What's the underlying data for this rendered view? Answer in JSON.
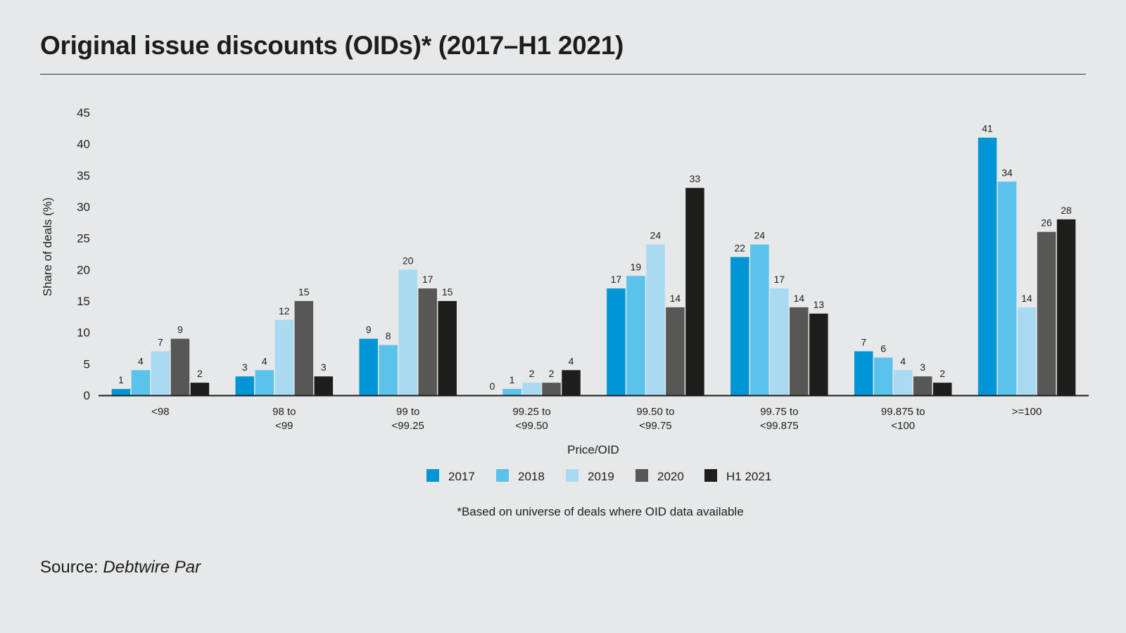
{
  "title": "Original issue discounts (OIDs)* (2017–H1 2021)",
  "footnote": "*Based on universe of deals where OID data available",
  "source": {
    "label": "Source:",
    "name": "Debtwire Par"
  },
  "colors": {
    "2017": "#0096d6",
    "2018": "#5bc2e9",
    "2019": "#a9daf2",
    "2020": "#575756",
    "H1 2021": "#1d1d1b"
  },
  "chart_data": {
    "type": "bar",
    "title": "Original issue discounts (OIDs)* (2017–H1 2021)",
    "xlabel": "Price/OID",
    "ylabel": "Share of deals (%)",
    "ylim": [
      0,
      45
    ],
    "yticks": [
      0,
      5,
      10,
      15,
      20,
      25,
      30,
      35,
      40,
      45
    ],
    "legend_position": "bottom",
    "categories": [
      [
        "<98"
      ],
      [
        "98 to",
        "<99"
      ],
      [
        "99 to",
        "<99.25"
      ],
      [
        "99.25 to",
        "<99.50"
      ],
      [
        "99.50 to",
        "<99.75"
      ],
      [
        "99.75 to",
        "<99.875"
      ],
      [
        "99.875 to",
        "<100"
      ],
      [
        ">=100"
      ]
    ],
    "series": [
      {
        "name": "2017",
        "values": [
          1,
          3,
          9,
          0,
          17,
          22,
          7,
          41
        ]
      },
      {
        "name": "2018",
        "values": [
          4,
          4,
          8,
          1,
          19,
          24,
          6,
          34
        ]
      },
      {
        "name": "2019",
        "values": [
          7,
          12,
          20,
          2,
          24,
          17,
          4,
          14
        ]
      },
      {
        "name": "2020",
        "values": [
          9,
          15,
          17,
          2,
          14,
          14,
          3,
          26
        ]
      },
      {
        "name": "H1 2021",
        "values": [
          2,
          3,
          15,
          4,
          33,
          13,
          2,
          28
        ]
      }
    ]
  }
}
